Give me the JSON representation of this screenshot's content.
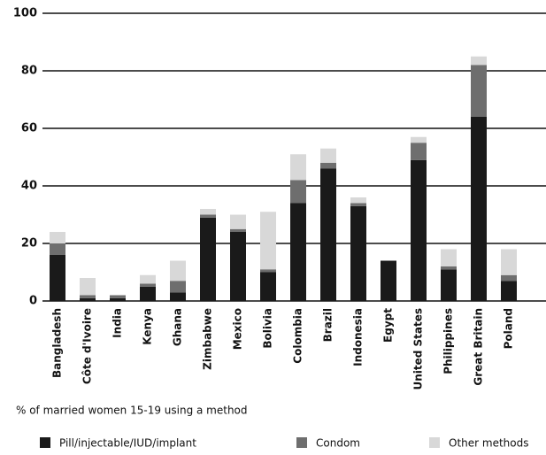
{
  "chart_data": {
    "type": "stacked_bar",
    "x_label": "% of married women 15-19 using a method",
    "categories": [
      "Bangladesh",
      "Côte d'Ivoire",
      "India",
      "Kenya",
      "Ghana",
      "Zimbabwe",
      "Mexico",
      "Bolivia",
      "Colombia",
      "Brazil",
      "Indonesia",
      "Egypt",
      "United States",
      "Philippines",
      "Great Britain",
      "Poland"
    ],
    "series": [
      {
        "name": "Pill/injectable/IUD/implant",
        "color": "#1a1a1a",
        "values": [
          16,
          1,
          1,
          5,
          3,
          29,
          24,
          10,
          34,
          46,
          33,
          14,
          49,
          11,
          64,
          7
        ]
      },
      {
        "name": "Condom",
        "color": "#6e6e6e",
        "values": [
          4,
          1,
          1,
          1,
          4,
          1,
          1,
          1,
          8,
          2,
          1,
          0,
          6,
          1,
          18,
          2
        ]
      },
      {
        "name": "Other methods",
        "color": "#d8d8d8",
        "values": [
          4,
          6,
          0,
          3,
          7,
          2,
          5,
          20,
          9,
          5,
          2,
          0,
          2,
          6,
          3,
          9
        ]
      }
    ],
    "ylim": [
      0,
      100
    ],
    "yticks": [
      0,
      20,
      40,
      60,
      80,
      100
    ],
    "grid": true
  }
}
